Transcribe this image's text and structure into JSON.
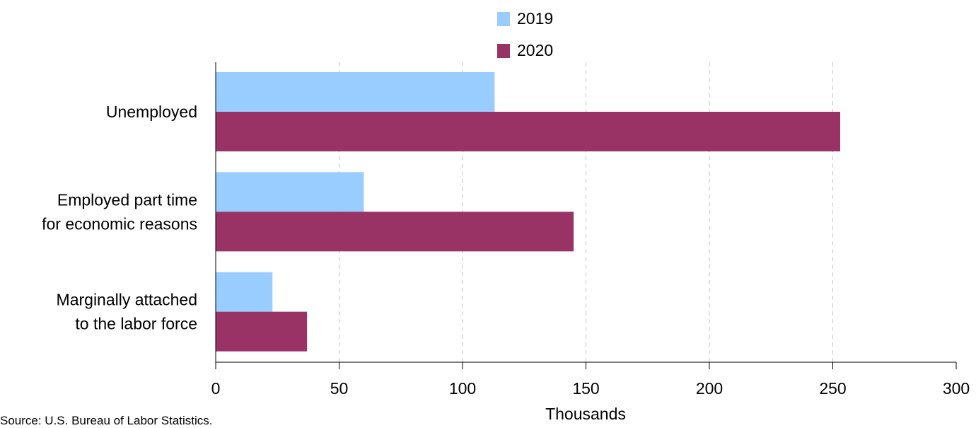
{
  "chart_data": {
    "type": "bar",
    "orientation": "horizontal",
    "categories": [
      [
        "Unemployed"
      ],
      [
        "Employed part time",
        "for economic reasons"
      ],
      [
        "Marginally attached",
        "to the labor force"
      ]
    ],
    "series": [
      {
        "name": "2019",
        "values": [
          113,
          60,
          23
        ]
      },
      {
        "name": "2020",
        "values": [
          253,
          145,
          37
        ]
      }
    ],
    "xlabel": "Thousands",
    "ylabel": "",
    "xlim": [
      0,
      300
    ],
    "xticks": [
      0,
      50,
      100,
      150,
      200,
      250,
      300
    ],
    "grid": "vertical dashed",
    "legend": "top-center",
    "colors": {
      "2019": "#99ccff",
      "2020": "#993366",
      "grid": "#c8c8c8",
      "axis": "#000000"
    }
  },
  "source": "Source: U.S. Bureau of Labor Statistics."
}
